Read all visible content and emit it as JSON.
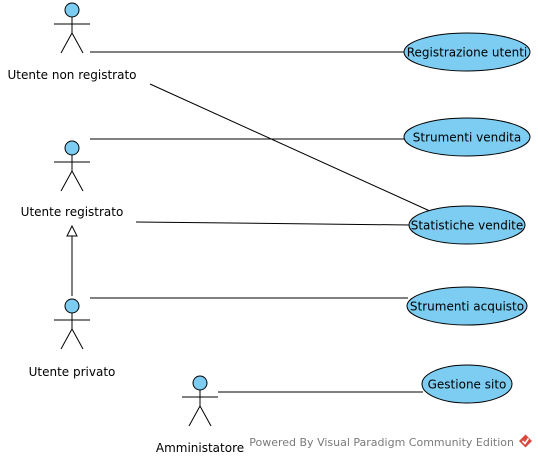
{
  "actors": [
    {
      "id": "unreg",
      "label": "Utente non registrato"
    },
    {
      "id": "reg",
      "label": "Utente registrato"
    },
    {
      "id": "priv",
      "label": "Utente privato"
    },
    {
      "id": "admin",
      "label": "Amministatore"
    }
  ],
  "use_cases": [
    {
      "id": "registrazione",
      "label": "Registrazione utenti"
    },
    {
      "id": "vendita",
      "label": "Strumenti vendita"
    },
    {
      "id": "statistiche",
      "label": "Statistiche vendite"
    },
    {
      "id": "acquisto",
      "label": "Strumenti acquisto"
    },
    {
      "id": "gestione",
      "label": "Gestione sito"
    }
  ],
  "associations": [
    {
      "actor": "unreg",
      "use_case": "registrazione"
    },
    {
      "actor": "unreg",
      "use_case": "statistiche"
    },
    {
      "actor": "reg",
      "use_case": "vendita"
    },
    {
      "actor": "reg",
      "use_case": "statistiche"
    },
    {
      "actor": "priv",
      "use_case": "acquisto"
    },
    {
      "actor": "admin",
      "use_case": "gestione"
    }
  ],
  "generalizations": [
    {
      "child": "priv",
      "parent": "reg"
    }
  ],
  "colors": {
    "use_case_fill": "#7ccdf1",
    "actor_head_fill": "#7ccdf1",
    "line": "#000000",
    "footer_text": "#7a7a7a",
    "logo_red": "#d9473f"
  },
  "footer": {
    "text": "Powered By Visual Paradigm Community Edition"
  }
}
